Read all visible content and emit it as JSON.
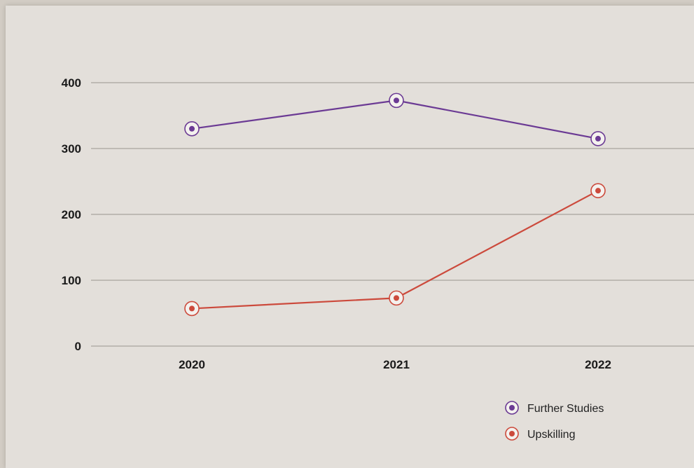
{
  "chart_data": {
    "type": "line",
    "title": "",
    "xlabel": "",
    "ylabel": "",
    "x": [
      "2020",
      "2021",
      "2022"
    ],
    "ylim": [
      0,
      400
    ],
    "y_ticks": [
      0,
      100,
      200,
      300,
      400
    ],
    "grid": true,
    "legend_position": "bottom-right",
    "series": [
      {
        "name": "Further Studies",
        "values": [
          330,
          373,
          315
        ],
        "color": "#6b3a94"
      },
      {
        "name": "Upskilling",
        "values": [
          57,
          73,
          236
        ],
        "color": "#cc4a3c"
      }
    ]
  }
}
